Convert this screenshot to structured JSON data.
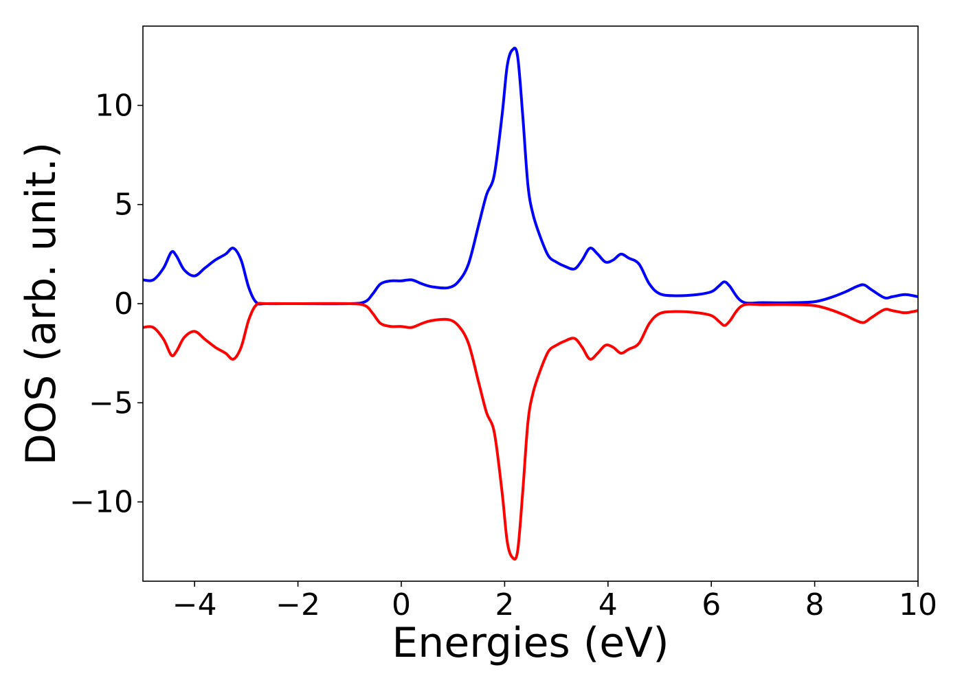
{
  "chart_data": {
    "type": "line",
    "title": "",
    "xlabel": "Energies (eV)",
    "ylabel": "DOS (arb. unit.)",
    "xlim": [
      -5,
      10
    ],
    "ylim": [
      -14,
      14
    ],
    "x_ticks": [
      -4,
      -2,
      0,
      2,
      4,
      6,
      8,
      10
    ],
    "x_tick_labels": [
      "−4",
      "−2",
      "0",
      "2",
      "4",
      "6",
      "8",
      "10"
    ],
    "y_ticks": [
      -10,
      -5,
      0,
      5,
      10
    ],
    "y_tick_labels": [
      "−10",
      "−5",
      "0",
      "5",
      "10"
    ],
    "grid": false,
    "legend": "none",
    "series": [
      {
        "color": "#0000ff",
        "x": [
          -5.0,
          -4.8,
          -4.6,
          -4.45,
          -4.35,
          -4.2,
          -4.0,
          -3.8,
          -3.6,
          -3.4,
          -3.25,
          -3.1,
          -2.95,
          -2.8,
          -2.6,
          -2.0,
          -1.0,
          -0.7,
          -0.55,
          -0.4,
          -0.2,
          0.0,
          0.2,
          0.4,
          0.6,
          0.9,
          1.1,
          1.3,
          1.5,
          1.65,
          1.8,
          1.95,
          2.05,
          2.15,
          2.25,
          2.35,
          2.45,
          2.55,
          2.7,
          2.85,
          3.0,
          3.15,
          3.35,
          3.5,
          3.65,
          3.8,
          3.95,
          4.1,
          4.25,
          4.4,
          4.6,
          4.8,
          5.0,
          5.3,
          5.7,
          6.0,
          6.15,
          6.25,
          6.35,
          6.6,
          7.0,
          7.6,
          8.0,
          8.3,
          8.6,
          8.8,
          8.95,
          9.1,
          9.35,
          9.5,
          9.7,
          9.8,
          10.0
        ],
        "y": [
          1.2,
          1.2,
          1.8,
          2.6,
          2.4,
          1.7,
          1.4,
          1.8,
          2.2,
          2.5,
          2.8,
          2.2,
          0.8,
          0.05,
          0.0,
          0.0,
          0.0,
          0.1,
          0.5,
          1.0,
          1.15,
          1.15,
          1.2,
          1.0,
          0.85,
          0.8,
          1.1,
          2.0,
          4.0,
          5.5,
          6.5,
          9.5,
          12.0,
          12.8,
          12.5,
          9.5,
          6.0,
          4.5,
          3.3,
          2.4,
          2.1,
          1.9,
          1.75,
          2.2,
          2.8,
          2.5,
          2.1,
          2.2,
          2.5,
          2.3,
          2.0,
          1.0,
          0.5,
          0.4,
          0.45,
          0.6,
          0.9,
          1.1,
          0.9,
          0.1,
          0.05,
          0.05,
          0.1,
          0.3,
          0.6,
          0.85,
          0.95,
          0.7,
          0.3,
          0.35,
          0.45,
          0.45,
          0.35
        ]
      },
      {
        "color": "#ff0000",
        "x": [
          -5.0,
          -4.8,
          -4.6,
          -4.45,
          -4.35,
          -4.2,
          -4.0,
          -3.8,
          -3.6,
          -3.4,
          -3.25,
          -3.1,
          -2.95,
          -2.8,
          -2.6,
          -2.0,
          -1.0,
          -0.7,
          -0.55,
          -0.4,
          -0.2,
          0.0,
          0.2,
          0.4,
          0.6,
          0.9,
          1.1,
          1.3,
          1.5,
          1.65,
          1.8,
          1.95,
          2.05,
          2.15,
          2.25,
          2.35,
          2.45,
          2.55,
          2.7,
          2.85,
          3.0,
          3.15,
          3.35,
          3.5,
          3.65,
          3.8,
          3.95,
          4.1,
          4.25,
          4.4,
          4.6,
          4.8,
          5.0,
          5.3,
          5.7,
          6.0,
          6.15,
          6.25,
          6.35,
          6.6,
          7.0,
          7.6,
          8.0,
          8.3,
          8.6,
          8.8,
          8.95,
          9.1,
          9.35,
          9.5,
          9.7,
          9.8,
          10.0
        ],
        "y": [
          -1.2,
          -1.2,
          -1.8,
          -2.6,
          -2.4,
          -1.7,
          -1.4,
          -1.8,
          -2.2,
          -2.5,
          -2.8,
          -2.2,
          -0.8,
          -0.05,
          0.0,
          0.0,
          0.0,
          -0.1,
          -0.5,
          -1.0,
          -1.15,
          -1.15,
          -1.2,
          -1.0,
          -0.85,
          -0.8,
          -1.1,
          -2.0,
          -4.0,
          -5.5,
          -6.5,
          -9.5,
          -12.0,
          -12.8,
          -12.5,
          -9.5,
          -6.0,
          -4.5,
          -3.3,
          -2.4,
          -2.1,
          -1.9,
          -1.75,
          -2.2,
          -2.8,
          -2.5,
          -2.1,
          -2.2,
          -2.5,
          -2.3,
          -2.0,
          -1.0,
          -0.5,
          -0.4,
          -0.45,
          -0.6,
          -0.9,
          -1.1,
          -0.9,
          -0.1,
          -0.05,
          -0.05,
          -0.1,
          -0.3,
          -0.6,
          -0.85,
          -0.95,
          -0.7,
          -0.3,
          -0.35,
          -0.45,
          -0.45,
          -0.35
        ]
      }
    ]
  }
}
